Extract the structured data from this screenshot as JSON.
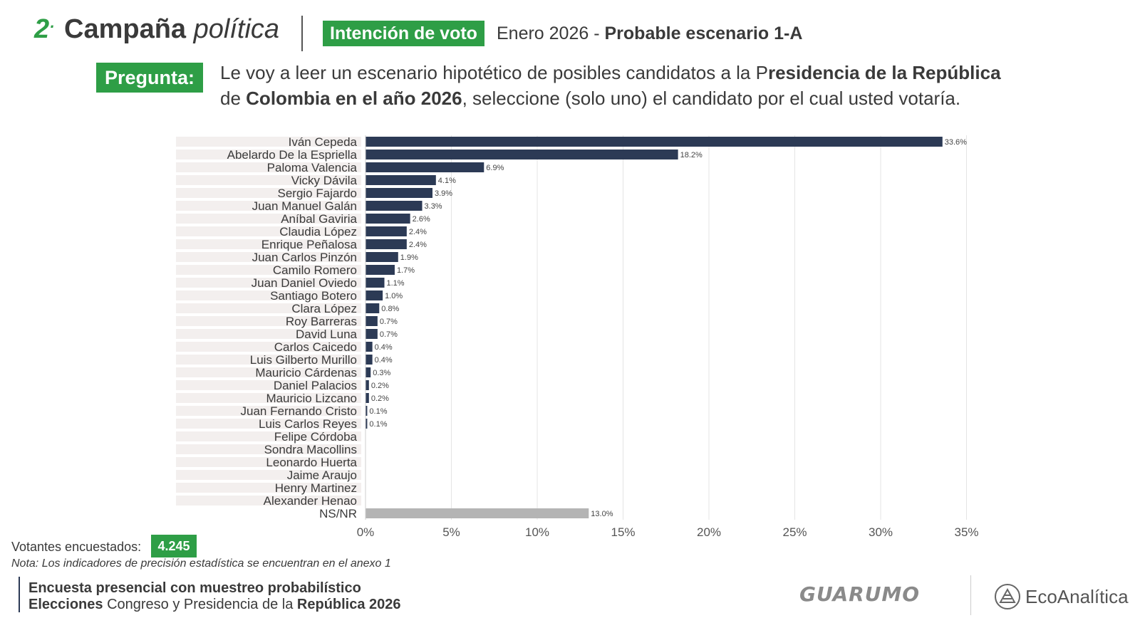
{
  "header": {
    "number": "2",
    "title_bold": "Campaña",
    "title_italic": "política",
    "badge": "Intención de voto",
    "subtitle_plain": "Enero 2026 -",
    "subtitle_bold": "Probable escenario 1-A"
  },
  "question": {
    "badge": "Pregunta:",
    "t1": "Le voy a leer un escenario hipotético de posibles candidatos a la P",
    "t2": "residencia de la República",
    "t3": "de",
    "t4": "Colombia en el año 2026",
    "t5": ", seleccione (solo uno) el candidato por el cual usted votaría."
  },
  "chart_data": {
    "type": "bar",
    "orientation": "horizontal",
    "title": "",
    "xlabel": "",
    "ylabel": "",
    "xlim": [
      0,
      35
    ],
    "x_ticks": [
      "0%",
      "5%",
      "10%",
      "15%",
      "20%",
      "25%",
      "30%",
      "35%"
    ],
    "grid": true,
    "categories": [
      "Iván Cepeda",
      "Abelardo De la Espriella",
      "Paloma Valencia",
      "Vicky Dávila",
      "Sergio Fajardo",
      "Juan Manuel Galán",
      "Aníbal Gaviria",
      "Claudia López",
      "Enrique Peñalosa",
      "Juan Carlos Pinzón",
      "Camilo Romero",
      "Juan Daniel Oviedo",
      "Santiago Botero",
      "Clara López",
      "Roy Barreras",
      "David Luna",
      "Carlos Caicedo",
      "Luis Gilberto Murillo",
      "Mauricio Cárdenas",
      "Daniel Palacios",
      "Mauricio Lizcano",
      "Juan Fernando Cristo",
      "Luis Carlos Reyes",
      "Felipe Córdoba",
      "Sondra Macollins",
      "Leonardo Huerta",
      "Jaime Araujo",
      "Henry Martinez",
      "Alexander Henao",
      "NS/NR"
    ],
    "values": [
      33.6,
      18.2,
      6.9,
      4.1,
      3.9,
      3.3,
      2.6,
      2.4,
      2.4,
      1.9,
      1.7,
      1.1,
      1.0,
      0.8,
      0.7,
      0.7,
      0.4,
      0.4,
      0.3,
      0.2,
      0.2,
      0.1,
      0.1,
      null,
      null,
      null,
      null,
      null,
      null,
      13.0
    ],
    "value_labels": [
      "33.6%",
      "18.2%",
      "6.9%",
      "4.1%",
      "3.9%",
      "3.3%",
      "2.6%",
      "2.4%",
      "2.4%",
      "1.9%",
      "1.7%",
      "1.1%",
      "1.0%",
      "0.8%",
      "0.7%",
      "0.7%",
      "0.4%",
      "0.4%",
      "0.3%",
      "0.2%",
      "0.2%",
      "0.1%",
      "0.1%",
      "",
      "",
      "",
      "",
      "",
      "",
      "13.0%"
    ],
    "colors": {
      "bar": "#2c3a55",
      "nsnr": "#b4b4b4",
      "row_band": "#f3efee",
      "grid": "#e4e4e4"
    }
  },
  "footer": {
    "voters_label": "Votantes encuestados:",
    "voters_value": "4.245",
    "note": "Nota: Los indicadores de precisión estadística se encuentran en el anexo 1",
    "line1": "Encuesta presencial con muestreo probabilístico",
    "line2_bold1": "Elecciones",
    "line2_plain": "Congreso y Presidencia de la",
    "line2_bold2": "República 2026",
    "logo_left": "GUARUMO",
    "logo_right": "EcoAnalítica"
  }
}
